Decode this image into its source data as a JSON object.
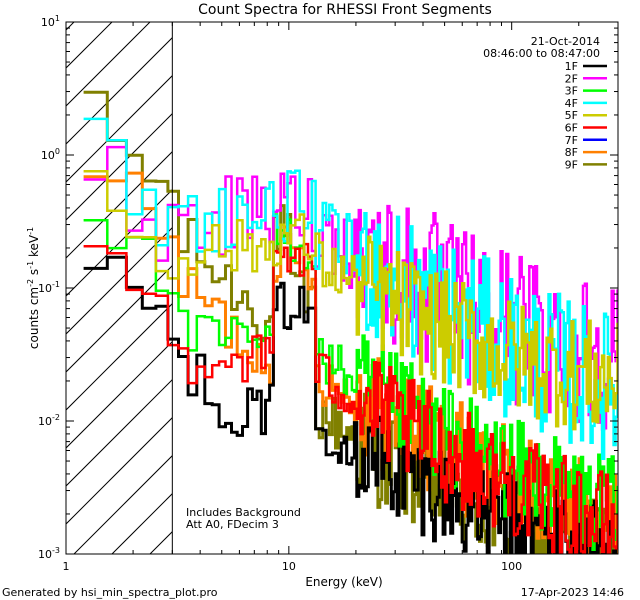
{
  "chart_data": {
    "type": "line",
    "title": "Count Spectra for RHESSI Front Segments",
    "xlabel": "Energy (keV)",
    "ylabel_main": "counts cm",
    "ylabel_sup1": "-2",
    "ylabel_mid": " s",
    "ylabel_sup2": "-1",
    "ylabel_end": " keV",
    "ylabel_sup3": "-1",
    "x_scale": "log",
    "y_scale": "log",
    "xlim": [
      1,
      300
    ],
    "ylim": [
      0.001,
      10
    ],
    "x_ticks": [
      {
        "value": 1,
        "label": "1"
      },
      {
        "value": 10,
        "label": "10"
      },
      {
        "value": 100,
        "label": "100"
      }
    ],
    "y_ticks": [
      {
        "value": 0.001,
        "base": "10",
        "exp": "-3"
      },
      {
        "value": 0.01,
        "base": "10",
        "exp": "-2"
      },
      {
        "value": 0.1,
        "base": "10",
        "exp": "-1"
      },
      {
        "value": 1,
        "base": "10",
        "exp": "0"
      },
      {
        "value": 10,
        "base": "10",
        "exp": "1"
      }
    ],
    "hatched_region_xmax": 3,
    "date": "21-Oct-2014",
    "time_range": "08:46:00 to 08:47:00",
    "annotation_1": "Includes Background",
    "annotation_2": "Att A0, FDecim 3",
    "footer_left": "Generated by hsi_min_spectra_plot.pro",
    "footer_right": "17-Apr-2023 14:46",
    "series": [
      {
        "name": "1F",
        "color": "#000000"
      },
      {
        "name": "2F",
        "color": "#ff00ff"
      },
      {
        "name": "3F",
        "color": "#00ff00"
      },
      {
        "name": "4F",
        "color": "#00ffff"
      },
      {
        "name": "5F",
        "color": "#cccc00"
      },
      {
        "name": "6F",
        "color": "#ff0000"
      },
      {
        "name": "7F",
        "color": "#0000ff"
      },
      {
        "name": "8F",
        "color": "#ff8000"
      },
      {
        "name": "9F",
        "color": "#808000"
      }
    ]
  }
}
